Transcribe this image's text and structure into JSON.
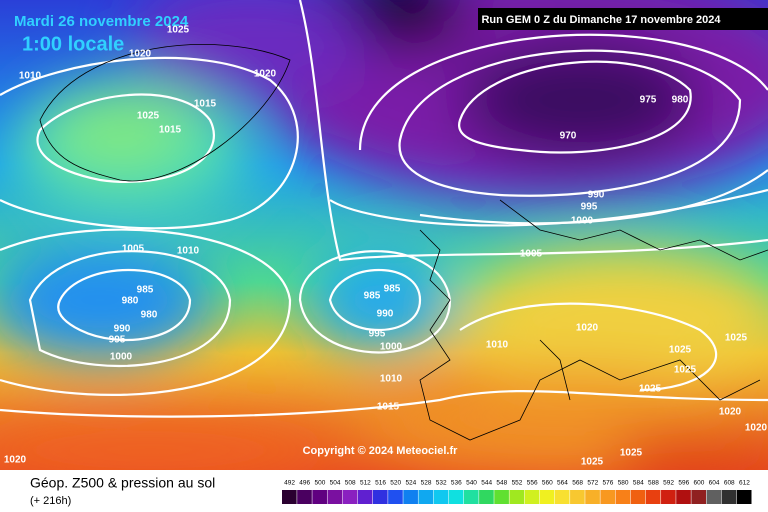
{
  "header": {
    "date": "Mardi 26 novembre 2024",
    "time": "1:00 locale",
    "run": "Run GEM 0 Z du Dimanche 17 novembre 2024"
  },
  "copyright": "Copyright © 2024 Meteociel.fr",
  "footer": {
    "title": "Géop. Z500 & pression au sol",
    "lead": "(+ 216h)"
  },
  "isobar_labels": [
    "1025",
    "1020",
    "1010",
    "1020",
    "1025",
    "1015",
    "1015",
    "975",
    "980",
    "970",
    "990",
    "995",
    "1000",
    "1005",
    "1010",
    "1005",
    "985",
    "980",
    "980",
    "985",
    "985",
    "990",
    "990",
    "995",
    "1000",
    "995",
    "1000",
    "1010",
    "1020",
    "1025",
    "1025",
    "1025",
    "1025",
    "1010",
    "1015",
    "1020",
    "1020",
    "1020",
    "1025",
    "1025"
  ],
  "legend": {
    "ticks": [
      492,
      496,
      500,
      504,
      508,
      512,
      516,
      520,
      524,
      528,
      532,
      536,
      540,
      544,
      548,
      552,
      556,
      560,
      564,
      568,
      572,
      576,
      580,
      584,
      588,
      592,
      596,
      600,
      604,
      608,
      612
    ]
  }
}
